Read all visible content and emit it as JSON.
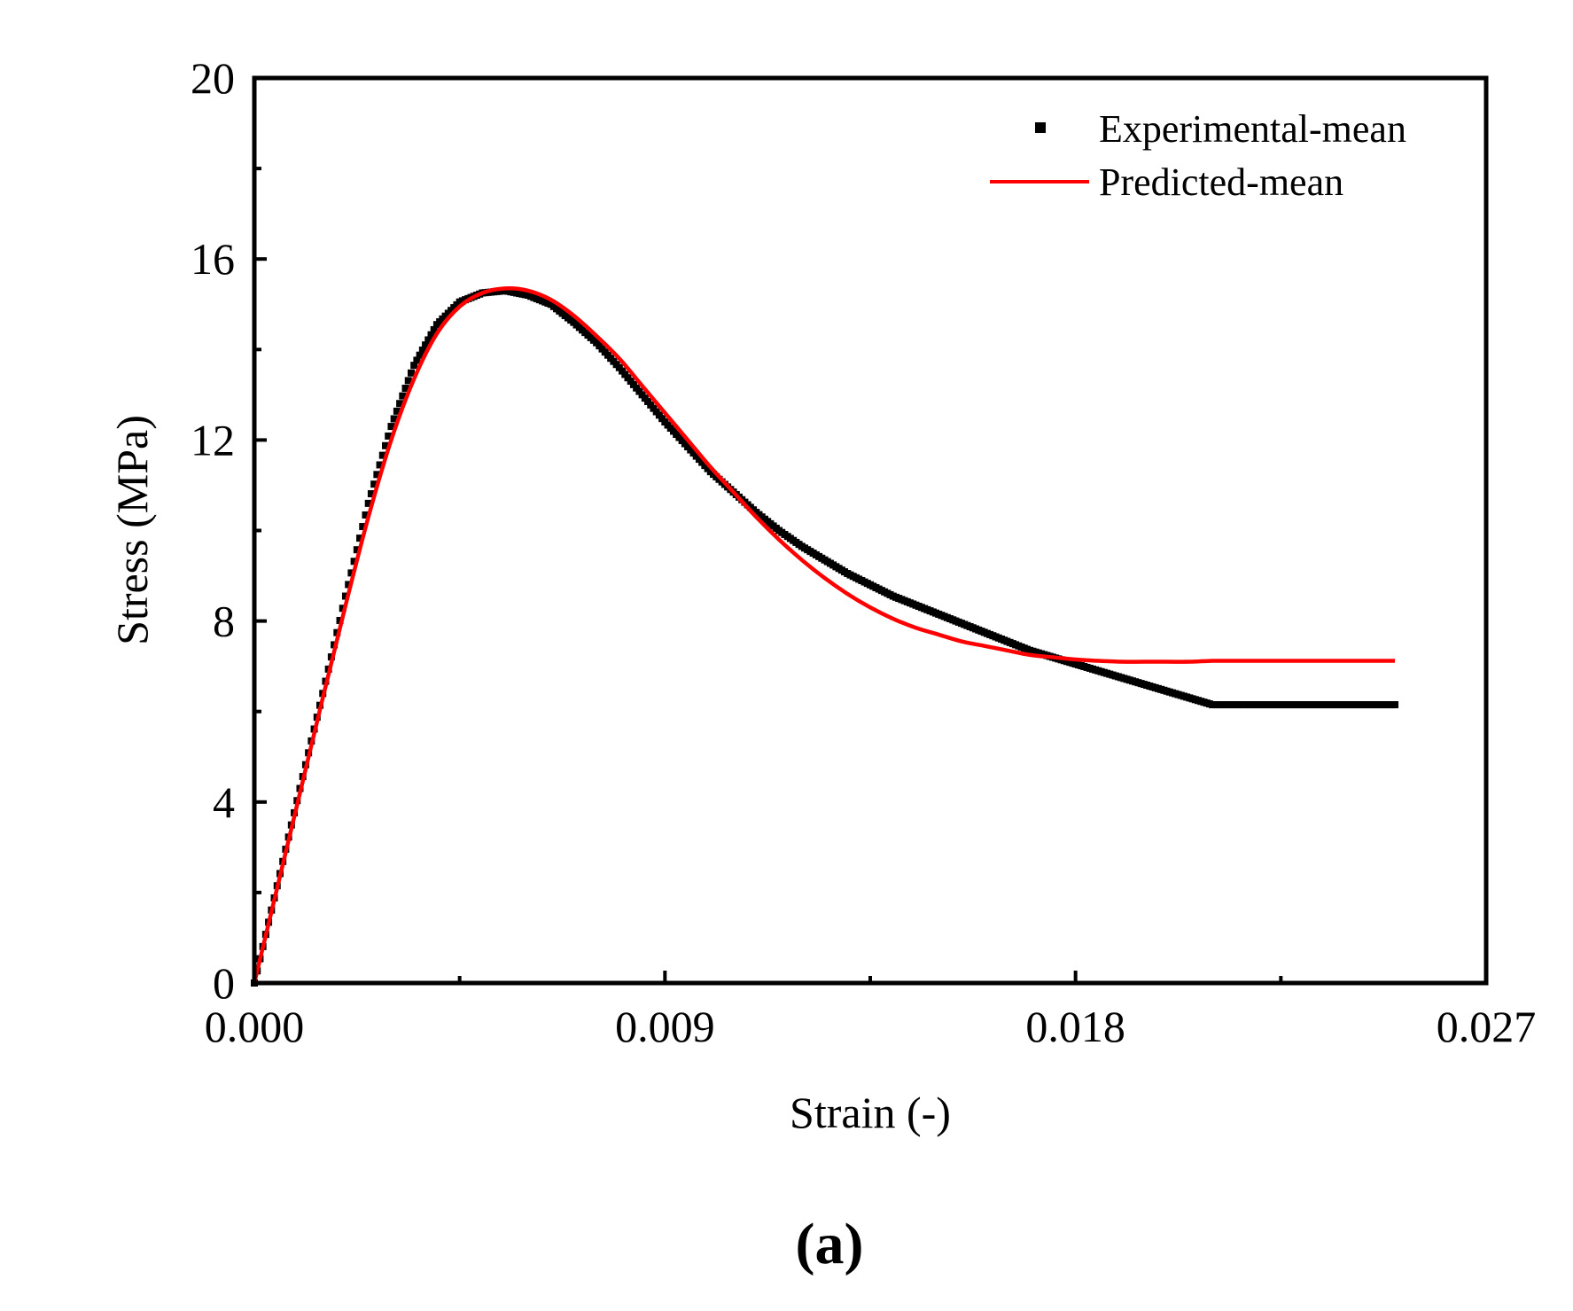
{
  "chart_data": {
    "type": "line",
    "title": "",
    "xlabel": "Strain (-)",
    "ylabel": "Stress (MPa)",
    "xlim": [
      0,
      0.027
    ],
    "ylim": [
      0,
      20
    ],
    "xticks": [
      0,
      0.009,
      0.018,
      0.027
    ],
    "xtick_labels": [
      "0.000",
      "0.009",
      "0.018",
      "0.027"
    ],
    "yticks": [
      0,
      4,
      8,
      12,
      16,
      20
    ],
    "ytick_labels": [
      "0",
      "4",
      "8",
      "12",
      "16",
      "20"
    ],
    "grid": false,
    "legend_position": "top-right",
    "series": [
      {
        "name": "Experimental-mean",
        "style": "square-markers",
        "color": "#000000",
        "x": [
          0,
          0.0005,
          0.001,
          0.0015,
          0.002,
          0.0025,
          0.003,
          0.0035,
          0.004,
          0.0045,
          0.005,
          0.0055,
          0.006,
          0.0065,
          0.007,
          0.0075,
          0.008,
          0.0085,
          0.009,
          0.0095,
          0.01,
          0.0105,
          0.011,
          0.0115,
          0.012,
          0.0125,
          0.013,
          0.0135,
          0.014,
          0.0145,
          0.015,
          0.0155,
          0.016,
          0.0165,
          0.017,
          0.0175,
          0.018,
          0.0185,
          0.019,
          0.0195,
          0.02,
          0.0205,
          0.021,
          0.0215,
          0.022,
          0.0225,
          0.023,
          0.0235,
          0.024,
          0.0245,
          0.025
        ],
        "y": [
          0,
          2.15,
          4.3,
          6.4,
          8.55,
          10.6,
          12.3,
          13.65,
          14.55,
          15.05,
          15.25,
          15.3,
          15.2,
          15.0,
          14.6,
          14.15,
          13.6,
          13.0,
          12.4,
          11.85,
          11.3,
          10.85,
          10.4,
          10.0,
          9.65,
          9.35,
          9.05,
          8.8,
          8.55,
          8.35,
          8.15,
          7.95,
          7.75,
          7.55,
          7.35,
          7.2,
          7.05,
          6.9,
          6.75,
          6.6,
          6.45,
          6.3,
          6.15,
          6.15,
          6.15,
          6.15,
          6.15,
          6.15,
          6.15,
          6.15,
          6.15
        ]
      },
      {
        "name": "Predicted-mean",
        "style": "line",
        "color": "#ff0000",
        "x": [
          0,
          0.0005,
          0.001,
          0.0015,
          0.002,
          0.0025,
          0.003,
          0.0035,
          0.004,
          0.0045,
          0.005,
          0.0055,
          0.006,
          0.0065,
          0.007,
          0.0075,
          0.008,
          0.0085,
          0.009,
          0.0095,
          0.01,
          0.0105,
          0.011,
          0.0115,
          0.012,
          0.0125,
          0.013,
          0.0135,
          0.014,
          0.0145,
          0.015,
          0.0155,
          0.016,
          0.0165,
          0.017,
          0.0175,
          0.018,
          0.0185,
          0.019,
          0.0195,
          0.02,
          0.0205,
          0.021,
          0.0215,
          0.022,
          0.0225,
          0.023,
          0.0235,
          0.024,
          0.0245,
          0.025
        ],
        "y": [
          0,
          2.1,
          4.2,
          6.3,
          8.35,
          10.3,
          12.0,
          13.35,
          14.35,
          14.95,
          15.25,
          15.35,
          15.3,
          15.1,
          14.75,
          14.3,
          13.8,
          13.2,
          12.6,
          12.0,
          11.4,
          10.85,
          10.3,
          9.8,
          9.35,
          8.95,
          8.6,
          8.3,
          8.05,
          7.85,
          7.7,
          7.55,
          7.45,
          7.35,
          7.25,
          7.2,
          7.15,
          7.12,
          7.1,
          7.1,
          7.1,
          7.1,
          7.12,
          7.12,
          7.12,
          7.12,
          7.12,
          7.12,
          7.12,
          7.12,
          7.12
        ]
      }
    ]
  },
  "figure": {
    "panel_label": "(a)"
  }
}
